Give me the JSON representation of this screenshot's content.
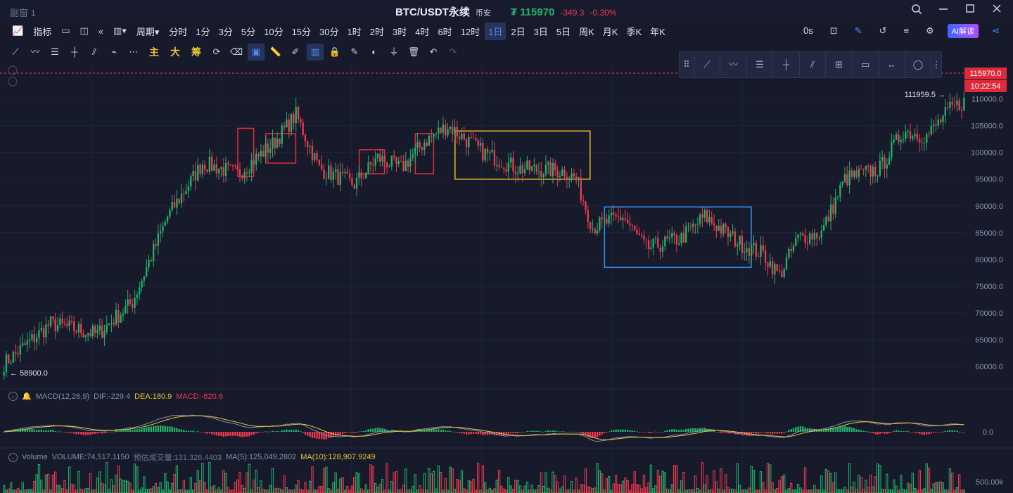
{
  "window": {
    "title": "副窗 1"
  },
  "header": {
    "symbol": "BTC/USDT永续",
    "exchange": "币安",
    "price": "₮ 115970",
    "change": "-349.3",
    "change_pct": "-0.30%",
    "colors": {
      "up": "#22b36a",
      "down": "#f03a4e"
    }
  },
  "toolbar1": {
    "indicator_label": "指标",
    "period_label": "周期",
    "intervals": [
      "分时",
      "1分",
      "3分",
      "5分",
      "10分",
      "15分",
      "30分",
      "1时",
      "2时",
      "3时",
      "4时",
      "6时",
      "12时",
      "1日",
      "2日",
      "3日",
      "5日",
      "周K",
      "月K",
      "季K",
      "年K"
    ],
    "active_interval": "1日",
    "right_text": "0s",
    "ai_label": "AI解读"
  },
  "toolbar2": {
    "texts": [
      "主",
      "大",
      "筹"
    ]
  },
  "chart_data": {
    "type": "candlestick",
    "price_axis_ticks": [
      "110000.0",
      "105000.0",
      "100000.0",
      "95000.0",
      "90000.0",
      "85000.0",
      "80000.0",
      "75000.0",
      "70000.0",
      "65000.0",
      "60000.0"
    ],
    "ylim": [
      57500,
      116000
    ],
    "current_price": "115970.0",
    "countdown": "10:22:54",
    "high_annotation": "111959.5",
    "low_annotation": "58900.0",
    "key_points": [
      {
        "idx": 0,
        "close": 60500
      },
      {
        "idx": 20,
        "close": 68000
      },
      {
        "idx": 40,
        "close": 66000
      },
      {
        "idx": 55,
        "close": 72000
      },
      {
        "idx": 70,
        "close": 88000
      },
      {
        "idx": 85,
        "close": 98000
      },
      {
        "idx": 100,
        "close": 96000
      },
      {
        "idx": 115,
        "close": 101500
      },
      {
        "idx": 125,
        "close": 107000
      },
      {
        "idx": 135,
        "close": 97000
      },
      {
        "idx": 150,
        "close": 94000
      },
      {
        "idx": 160,
        "close": 99000
      },
      {
        "idx": 170,
        "close": 97000
      },
      {
        "idx": 180,
        "close": 102000
      },
      {
        "idx": 190,
        "close": 105000
      },
      {
        "idx": 205,
        "close": 100000
      },
      {
        "idx": 220,
        "close": 97000
      },
      {
        "idx": 240,
        "close": 96500
      },
      {
        "idx": 245,
        "close": 95000
      },
      {
        "idx": 252,
        "close": 86000
      },
      {
        "idx": 265,
        "close": 88000
      },
      {
        "idx": 275,
        "close": 82000
      },
      {
        "idx": 290,
        "close": 84000
      },
      {
        "idx": 300,
        "close": 88000
      },
      {
        "idx": 315,
        "close": 83000
      },
      {
        "idx": 325,
        "close": 81000
      },
      {
        "idx": 332,
        "close": 77000
      },
      {
        "idx": 340,
        "close": 84000
      },
      {
        "idx": 350,
        "close": 85000
      },
      {
        "idx": 360,
        "close": 95000
      },
      {
        "idx": 375,
        "close": 97000
      },
      {
        "idx": 385,
        "close": 104000
      },
      {
        "idx": 395,
        "close": 103000
      },
      {
        "idx": 405,
        "close": 108000
      },
      {
        "idx": 411,
        "close": 109500
      }
    ],
    "macd": {
      "label": "MACD(12,26,9)",
      "dif": "DIF:-229.4",
      "dea": "DEA:180.9",
      "macd": "MACD:-820.6",
      "zero_tick": "0.0"
    },
    "volume": {
      "label": "Volume",
      "volume": "VOLUME:74,517.1150",
      "estimated": "预估成交量:131,326.4403",
      "ma5": "MA(5):125,049.2802",
      "ma10": "MA(10):128,907.9249",
      "tick": "500.00k"
    },
    "annotation_boxes": [
      {
        "color": "#e02a3a",
        "y_range": [
          95500,
          104500
        ],
        "idx_range": [
          101,
          106
        ]
      },
      {
        "color": "#e02a3a",
        "y_range": [
          98000,
          103500
        ],
        "idx_range": [
          113,
          124
        ]
      },
      {
        "color": "#e02a3a",
        "y_range": [
          96000,
          100500
        ],
        "idx_range": [
          153,
          162
        ]
      },
      {
        "color": "#e02a3a",
        "y_range": [
          96000,
          103500
        ],
        "idx_range": [
          177,
          183
        ]
      },
      {
        "color": "#e8b12a",
        "y_range": [
          95000,
          104000
        ],
        "idx_range": [
          194,
          250
        ]
      },
      {
        "color": "#2f8cf0",
        "y_range": [
          78500,
          89800
        ],
        "idx_range": [
          258,
          319
        ]
      }
    ]
  }
}
